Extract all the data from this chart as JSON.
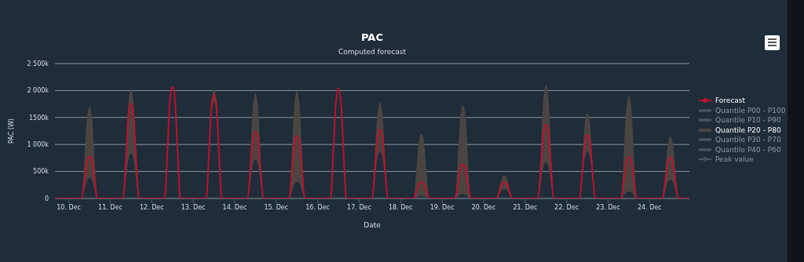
{
  "chart_data": {
    "type": "line",
    "title": "PAC",
    "subtitle": "Computed forecast",
    "xlabel": "Date",
    "ylabel": "PAC (W)",
    "x": [
      "--12-09T16:00",
      "--12-10T00:00",
      "--12-10T07:30",
      "--12-10T09:00",
      "--12-10T10:30",
      "--12-10T12:00",
      "--12-10T13:30",
      "--12-10T15:00",
      "--12-10T16:30",
      "--12-11T00:00",
      "--12-11T07:30",
      "--12-11T09:00",
      "--12-11T10:30",
      "--12-11T12:00",
      "--12-11T13:30",
      "--12-11T15:00",
      "--12-11T16:30",
      "--12-12T00:00",
      "--12-12T07:30",
      "--12-12T09:00",
      "--12-12T10:30",
      "--12-12T12:00",
      "--12-12T13:30",
      "--12-12T15:00",
      "--12-12T16:30",
      "--12-13T00:00",
      "--12-13T07:30",
      "--12-13T09:00",
      "--12-13T10:30",
      "--12-13T12:00",
      "--12-13T13:30",
      "--12-13T15:00",
      "--12-13T16:30",
      "--12-14T00:00",
      "--12-14T07:30",
      "--12-14T09:00",
      "--12-14T10:30",
      "--12-14T12:00",
      "--12-14T13:30",
      "--12-14T15:00",
      "--12-14T16:30",
      "--12-15T00:00",
      "--12-15T07:30",
      "--12-15T09:00",
      "--12-15T10:30",
      "--12-15T12:00",
      "--12-15T13:30",
      "--12-15T15:00",
      "--12-15T16:30",
      "--12-16T00:00",
      "--12-16T07:30",
      "--12-16T09:00",
      "--12-16T10:30",
      "--12-16T12:00",
      "--12-16T13:30",
      "--12-16T15:00",
      "--12-16T16:30",
      "--12-17T00:00",
      "--12-17T07:30",
      "--12-17T09:00",
      "--12-17T10:30",
      "--12-17T12:00",
      "--12-17T13:30",
      "--12-17T15:00",
      "--12-17T16:30",
      "--12-18T00:00",
      "--12-18T07:30",
      "--12-18T09:00",
      "--12-18T10:30",
      "--12-18T12:00",
      "--12-18T13:30",
      "--12-18T15:00",
      "--12-18T16:30",
      "--12-19T00:00",
      "--12-19T07:30",
      "--12-19T09:00",
      "--12-19T10:30",
      "--12-19T12:00",
      "--12-19T13:30",
      "--12-19T15:00",
      "--12-19T16:30",
      "--12-20T00:00",
      "--12-20T07:30",
      "--12-20T09:00",
      "--12-20T10:30",
      "--12-20T12:00",
      "--12-20T13:30",
      "--12-20T15:00",
      "--12-20T16:30",
      "--12-21T00:00",
      "--12-21T07:30",
      "--12-21T09:00",
      "--12-21T10:30",
      "--12-21T12:00",
      "--12-21T13:30",
      "--12-21T15:00",
      "--12-21T16:30",
      "--12-22T00:00",
      "--12-22T07:30",
      "--12-22T09:00",
      "--12-22T10:30",
      "--12-22T12:00",
      "--12-22T13:30",
      "--12-22T15:00",
      "--12-22T16:30",
      "--12-23T00:00",
      "--12-23T07:30",
      "--12-23T09:00",
      "--12-23T10:30",
      "--12-23T12:00",
      "--12-23T13:30",
      "--12-23T15:00",
      "--12-23T16:30",
      "--12-24T00:00",
      "--12-24T07:30",
      "--12-24T09:00",
      "--12-24T10:30",
      "--12-24T12:00",
      "--12-24T13:30",
      "--12-24T15:00",
      "--12-24T16:30",
      "--12-24T23:00"
    ],
    "series": [
      {
        "name": "Forecast",
        "type": "line",
        "color": "#c0102c",
        "values": [
          0,
          0,
          0,
          310000,
          680000,
          780000,
          680000,
          310000,
          0,
          0,
          0,
          700000,
          1530000,
          1760000,
          1530000,
          700000,
          0,
          0,
          0,
          830000,
          1800000,
          2070000,
          1800000,
          830000,
          0,
          0,
          0,
          770000,
          1680000,
          1930000,
          1680000,
          770000,
          0,
          0,
          0,
          500000,
          1080000,
          1240000,
          1080000,
          500000,
          0,
          0,
          0,
          460000,
          1010000,
          1160000,
          1010000,
          460000,
          0,
          0,
          0,
          820000,
          1770000,
          2040000,
          1770000,
          820000,
          0,
          0,
          0,
          510000,
          1110000,
          1280000,
          1110000,
          510000,
          0,
          0,
          0,
          120000,
          260000,
          300000,
          260000,
          120000,
          0,
          0,
          0,
          250000,
          550000,
          630000,
          550000,
          250000,
          0,
          0,
          0,
          120000,
          260000,
          300000,
          260000,
          120000,
          0,
          0,
          0,
          550000,
          1190000,
          1370000,
          1190000,
          550000,
          0,
          0,
          0,
          470000,
          1030000,
          1180000,
          1030000,
          470000,
          0,
          0,
          0,
          310000,
          670000,
          770000,
          670000,
          310000,
          0,
          0,
          0,
          300000,
          660000,
          760000,
          660000,
          300000,
          0,
          0
        ]
      },
      {
        "name": "Quantile P00 - P100",
        "type": "area",
        "color": "#3a4650",
        "values": [
          null,
          null,
          null,
          null,
          null,
          null,
          null,
          null,
          null,
          null,
          null,
          null,
          null,
          null,
          null,
          null,
          null,
          null,
          null,
          null,
          null,
          null,
          null,
          null,
          null,
          null,
          null,
          null,
          null,
          null,
          null,
          null,
          null,
          null,
          null,
          null,
          null,
          null,
          null,
          null,
          null,
          null,
          null,
          null,
          null,
          null,
          null,
          null,
          null,
          null,
          null,
          null,
          null,
          null,
          null,
          null,
          null,
          null,
          null,
          null,
          null,
          null,
          null,
          null,
          null,
          null,
          null,
          null,
          null,
          null,
          null,
          null,
          null,
          null,
          null,
          null,
          null,
          null,
          null,
          null,
          null,
          null,
          null,
          null,
          null,
          null,
          null,
          null,
          null,
          null,
          null,
          null,
          null,
          null,
          null,
          null,
          null,
          null,
          null,
          null,
          null,
          null,
          null,
          null,
          null,
          null,
          null,
          null,
          null,
          null,
          null,
          null,
          null,
          null,
          null,
          null,
          null,
          null,
          null,
          null,
          null,
          null
        ]
      },
      {
        "name": "Quantile P10 - P90",
        "type": "area",
        "color": "#3a4650",
        "values": [
          null,
          null,
          null,
          null,
          null,
          null,
          null,
          null,
          null,
          null,
          null,
          null,
          null,
          null,
          null,
          null,
          null,
          null,
          null,
          null,
          null,
          null,
          null,
          null,
          null,
          null,
          null,
          null,
          null,
          null,
          null,
          null,
          null,
          null,
          null,
          null,
          null,
          null,
          null,
          null,
          null,
          null,
          null,
          null,
          null,
          null,
          null,
          null,
          null,
          null,
          null,
          null,
          null,
          null,
          null,
          null,
          null,
          null,
          null,
          null,
          null,
          null,
          null,
          null,
          null,
          null,
          null,
          null,
          null,
          null,
          null,
          null,
          null,
          null,
          null,
          null,
          null,
          null,
          null,
          null,
          null,
          null,
          null,
          null,
          null,
          null,
          null,
          null,
          null,
          null,
          null,
          null,
          null,
          null,
          null,
          null,
          null,
          null,
          null,
          null,
          null,
          null,
          null,
          null,
          null,
          null,
          null,
          null,
          null,
          null,
          null,
          null,
          null,
          null,
          null,
          null,
          null,
          null,
          null,
          null,
          null,
          null
        ]
      },
      {
        "name": "Quantile P20 - P80",
        "type": "area",
        "color": "#4b4541",
        "values": [
          null,
          null,
          null,
          null,
          null,
          null,
          null,
          null,
          null,
          null,
          null,
          null,
          null,
          null,
          null,
          null,
          null,
          null,
          null,
          null,
          null,
          null,
          null,
          null,
          null,
          null,
          null,
          null,
          null,
          null,
          null,
          null,
          null,
          null,
          null,
          null,
          null,
          null,
          null,
          null,
          null,
          null,
          null,
          null,
          null,
          null,
          null,
          null,
          null,
          null,
          null,
          null,
          null,
          null,
          null,
          null,
          null,
          null,
          null,
          null,
          null,
          null,
          null,
          null,
          null,
          null,
          null,
          null,
          null,
          null,
          null,
          null,
          null,
          null,
          null,
          null,
          null,
          null,
          null,
          null,
          null,
          null,
          null,
          null,
          null,
          null,
          null,
          null,
          null,
          null,
          null,
          null,
          null,
          null,
          null,
          null,
          null,
          null,
          null,
          null,
          null,
          null,
          null,
          null,
          null,
          null,
          null,
          null,
          null,
          null,
          null,
          null,
          null,
          null,
          null,
          null,
          null,
          null,
          null,
          null,
          null,
          null
        ],
        "lower": [
          0,
          0,
          0,
          150000,
          330000,
          380000,
          330000,
          150000,
          0,
          0,
          0,
          340000,
          730000,
          840000,
          730000,
          340000,
          0,
          0,
          0,
          830000,
          1800000,
          2070000,
          1800000,
          830000,
          0,
          0,
          0,
          710000,
          1550000,
          1780000,
          1550000,
          710000,
          0,
          0,
          0,
          290000,
          630000,
          720000,
          630000,
          290000,
          0,
          0,
          0,
          120000,
          270000,
          310000,
          270000,
          120000,
          0,
          0,
          0,
          820000,
          1770000,
          2040000,
          1770000,
          820000,
          0,
          0,
          0,
          340000,
          750000,
          860000,
          750000,
          340000,
          0,
          0,
          0,
          20000,
          40000,
          50000,
          40000,
          20000,
          0,
          0,
          0,
          30000,
          70000,
          80000,
          70000,
          30000,
          0,
          0,
          0,
          70000,
          150000,
          170000,
          150000,
          70000,
          0,
          0,
          0,
          270000,
          580000,
          670000,
          580000,
          270000,
          0,
          0,
          0,
          350000,
          760000,
          870000,
          760000,
          350000,
          0,
          0,
          0,
          50000,
          110000,
          130000,
          110000,
          50000,
          0,
          0,
          0,
          140000,
          300000,
          350000,
          300000,
          140000,
          0,
          0
        ],
        "upper": [
          0,
          0,
          0,
          680000,
          1480000,
          1700000,
          1480000,
          680000,
          0,
          0,
          0,
          810000,
          1760000,
          2020000,
          1760000,
          810000,
          0,
          0,
          0,
          830000,
          1800000,
          2070000,
          1800000,
          830000,
          0,
          0,
          0,
          810000,
          1760000,
          2020000,
          1760000,
          810000,
          0,
          0,
          0,
          780000,
          1700000,
          1950000,
          1700000,
          780000,
          0,
          0,
          0,
          800000,
          1730000,
          1990000,
          1730000,
          800000,
          0,
          0,
          0,
          820000,
          1770000,
          2040000,
          1770000,
          820000,
          0,
          0,
          0,
          710000,
          1550000,
          1780000,
          1550000,
          710000,
          0,
          0,
          0,
          480000,
          1040000,
          1200000,
          1040000,
          480000,
          0,
          0,
          0,
          690000,
          1510000,
          1730000,
          1510000,
          690000,
          0,
          0,
          0,
          170000,
          370000,
          430000,
          370000,
          170000,
          0,
          0,
          0,
          840000,
          1830000,
          2100000,
          1830000,
          840000,
          0,
          0,
          0,
          630000,
          1370000,
          1580000,
          1370000,
          630000,
          0,
          0,
          0,
          760000,
          1650000,
          1900000,
          1650000,
          760000,
          0,
          0,
          0,
          460000,
          1000000,
          1150000,
          1000000,
          460000,
          0,
          0
        ]
      },
      {
        "name": "Quantile P30 - P70",
        "type": "area",
        "color": "#3a4650",
        "values": [
          null,
          null,
          null,
          null,
          null,
          null,
          null,
          null,
          null,
          null,
          null,
          null,
          null,
          null,
          null,
          null,
          null,
          null,
          null,
          null,
          null,
          null,
          null,
          null,
          null,
          null,
          null,
          null,
          null,
          null,
          null,
          null,
          null,
          null,
          null,
          null,
          null,
          null,
          null,
          null,
          null,
          null,
          null,
          null,
          null,
          null,
          null,
          null,
          null,
          null,
          null,
          null,
          null,
          null,
          null,
          null,
          null,
          null,
          null,
          null,
          null,
          null,
          null,
          null,
          null,
          null,
          null,
          null,
          null,
          null,
          null,
          null,
          null,
          null,
          null,
          null,
          null,
          null,
          null,
          null,
          null,
          null,
          null,
          null,
          null,
          null,
          null,
          null,
          null,
          null,
          null,
          null,
          null,
          null,
          null,
          null,
          null,
          null,
          null,
          null,
          null,
          null,
          null,
          null,
          null,
          null,
          null,
          null,
          null,
          null,
          null,
          null,
          null,
          null,
          null,
          null,
          null,
          null,
          null,
          null,
          null,
          null
        ]
      },
      {
        "name": "Quantile P40 - P60",
        "type": "area",
        "color": "#3a4650",
        "values": [
          null,
          null,
          null,
          null,
          null,
          null,
          null,
          null,
          null,
          null,
          null,
          null,
          null,
          null,
          null,
          null,
          null,
          null,
          null,
          null,
          null,
          null,
          null,
          null,
          null,
          null,
          null,
          null,
          null,
          null,
          null,
          null,
          null,
          null,
          null,
          null,
          null,
          null,
          null,
          null,
          null,
          null,
          null,
          null,
          null,
          null,
          null,
          null,
          null,
          null,
          null,
          null,
          null,
          null,
          null,
          null,
          null,
          null,
          null,
          null,
          null,
          null,
          null,
          null,
          null,
          null,
          null,
          null,
          null,
          null,
          null,
          null,
          null,
          null,
          null,
          null,
          null,
          null,
          null,
          null,
          null,
          null,
          null,
          null,
          null,
          null,
          null,
          null,
          null,
          null,
          null,
          null,
          null,
          null,
          null,
          null,
          null,
          null,
          null,
          null,
          null,
          null,
          null,
          null,
          null,
          null,
          null,
          null,
          null,
          null,
          null,
          null,
          null,
          null,
          null,
          null,
          null,
          null,
          null,
          null,
          null,
          null
        ]
      },
      {
        "name": "Peak value",
        "type": "scatter",
        "color": "#3a4650",
        "marker": "circle",
        "values": [
          null,
          null,
          null,
          null,
          null,
          null,
          null,
          null,
          null,
          null,
          null,
          null,
          null,
          null,
          null,
          null,
          null,
          null,
          null,
          null,
          null,
          null,
          null,
          null,
          null,
          null,
          null,
          null,
          null,
          null,
          null,
          null,
          null,
          null,
          null,
          null,
          null,
          null,
          null,
          null,
          null,
          null,
          null,
          null,
          null,
          null,
          null,
          null,
          null,
          null,
          null,
          null,
          null,
          null,
          null,
          null,
          null,
          null,
          null,
          null,
          null,
          null,
          null,
          null,
          null,
          null,
          null,
          null,
          null,
          null,
          null,
          null,
          null,
          null,
          null,
          null,
          null,
          null,
          null,
          null,
          null,
          null,
          null,
          null,
          null,
          null,
          null,
          null,
          null,
          null,
          null,
          null,
          null,
          null,
          null,
          null,
          null,
          null,
          null,
          null,
          null,
          null,
          null,
          null,
          null,
          null,
          null,
          null,
          null,
          null,
          null,
          null,
          null,
          null,
          null,
          null,
          null,
          null,
          null,
          null,
          null,
          null
        ]
      }
    ],
    "xlim": [
      "--12-09T16:00",
      "--12-24T23:00"
    ],
    "xticks": [
      {
        "value": "--12-10",
        "label": "10. Dec"
      },
      {
        "value": "--12-11",
        "label": "11. Dec"
      },
      {
        "value": "--12-12",
        "label": "12. Dec"
      },
      {
        "value": "--12-13",
        "label": "13. Dec"
      },
      {
        "value": "--12-14",
        "label": "14. Dec"
      },
      {
        "value": "--12-15",
        "label": "15. Dec"
      },
      {
        "value": "--12-16",
        "label": "16. Dec"
      },
      {
        "value": "--12-17",
        "label": "17. Dec"
      },
      {
        "value": "--12-18",
        "label": "18. Dec"
      },
      {
        "value": "--12-19",
        "label": "19. Dec"
      },
      {
        "value": "--12-20",
        "label": "20. Dec"
      },
      {
        "value": "--12-21",
        "label": "21. Dec"
      },
      {
        "value": "--12-22",
        "label": "22. Dec"
      },
      {
        "value": "--12-23",
        "label": "23. Dec"
      },
      {
        "value": "--12-24",
        "label": "24. Dec"
      }
    ],
    "ylim": [
      0,
      2500000
    ],
    "yticks": [
      0,
      {
        "value": 500000,
        "label": "500k"
      },
      {
        "value": 1000000,
        "label": "1 000k"
      },
      {
        "value": 1500000,
        "label": "1500k"
      },
      {
        "value": 2000000,
        "label": "2 000k"
      },
      {
        "value": 2500000,
        "label": "2 500k"
      }
    ],
    "grid": "y",
    "legend": "right",
    "line_style": "solid"
  }
}
